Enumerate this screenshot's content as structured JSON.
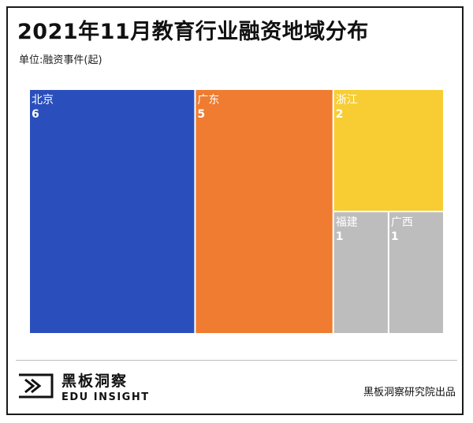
{
  "chart_data": {
    "type": "treemap",
    "title": "2021年11月教育行业融资地域分布",
    "subtitle": "单位:融资事件(起)",
    "items": [
      {
        "name": "北京",
        "value": 6,
        "color": "#2a4fbd"
      },
      {
        "name": "广东",
        "value": 5,
        "color": "#ef7c30"
      },
      {
        "name": "浙江",
        "value": 2,
        "color": "#f7cd33"
      },
      {
        "name": "福建",
        "value": 1,
        "color": "#bdbdbd"
      },
      {
        "name": "广西",
        "value": 1,
        "color": "#bdbdbd"
      }
    ]
  },
  "brand": {
    "name_cn": "黑板洞察",
    "name_en": "EDU INSIGHT"
  },
  "source": "黑板洞察研究院出品"
}
